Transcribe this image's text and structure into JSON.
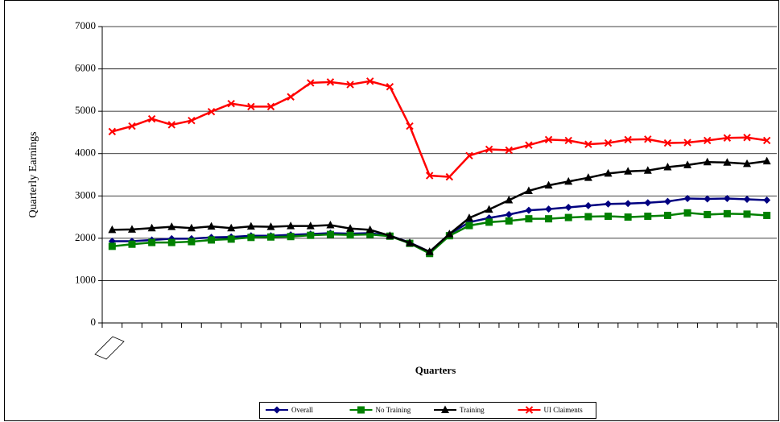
{
  "chart_data": {
    "type": "line",
    "xlabel": "Quarters",
    "ylabel": "Quarterly Earnings",
    "categories": [
      null,
      null,
      null,
      null,
      null,
      null,
      null,
      null,
      null,
      null,
      null,
      null,
      null,
      null,
      null,
      null,
      null,
      null,
      null,
      null,
      null,
      null,
      null,
      null,
      null,
      null,
      null,
      null,
      null,
      null,
      null,
      null,
      null,
      null
    ],
    "ylim": [
      0,
      7000
    ],
    "yticks": [
      0,
      1000,
      2000,
      3000,
      4000,
      5000,
      6000,
      7000
    ],
    "grid": true,
    "legend": "bottom",
    "series": [
      {
        "name": "Overall",
        "color": "#000080",
        "marker": "diamond",
        "values": [
          1930,
          1930,
          1960,
          1990,
          1990,
          2020,
          2030,
          2060,
          2060,
          2080,
          2100,
          2120,
          2110,
          2120,
          2060,
          1900,
          1680,
          2100,
          2380,
          2480,
          2560,
          2660,
          2690,
          2730,
          2770,
          2810,
          2820,
          2840,
          2870,
          2940,
          2930,
          2940,
          2920,
          2900
        ]
      },
      {
        "name": "No Training",
        "color": "#008000",
        "marker": "square",
        "values": [
          1810,
          1860,
          1900,
          1900,
          1920,
          1960,
          1980,
          2020,
          2030,
          2040,
          2070,
          2090,
          2080,
          2090,
          2050,
          1880,
          1640,
          2060,
          2300,
          2380,
          2410,
          2460,
          2460,
          2490,
          2510,
          2520,
          2500,
          2520,
          2540,
          2600,
          2560,
          2580,
          2570,
          2540
        ]
      },
      {
        "name": "Training",
        "color": "#000000",
        "marker": "triangle",
        "values": [
          2200,
          2210,
          2240,
          2270,
          2240,
          2280,
          2240,
          2280,
          2270,
          2290,
          2290,
          2310,
          2230,
          2200,
          2060,
          1890,
          1680,
          2100,
          2480,
          2680,
          2900,
          3120,
          3250,
          3340,
          3430,
          3530,
          3580,
          3600,
          3680,
          3730,
          3800,
          3790,
          3760,
          3820
        ]
      },
      {
        "name": "UI Claiments",
        "color": "#ff0000",
        "marker": "x",
        "values": [
          4520,
          4650,
          4820,
          4680,
          4780,
          4990,
          5180,
          5110,
          5110,
          5340,
          5670,
          5690,
          5630,
          5710,
          5580,
          4650,
          3480,
          3450,
          3950,
          4100,
          4080,
          4200,
          4330,
          4310,
          4220,
          4250,
          4330,
          4340,
          4250,
          4260,
          4310,
          4370,
          4380,
          4310
        ]
      }
    ]
  }
}
